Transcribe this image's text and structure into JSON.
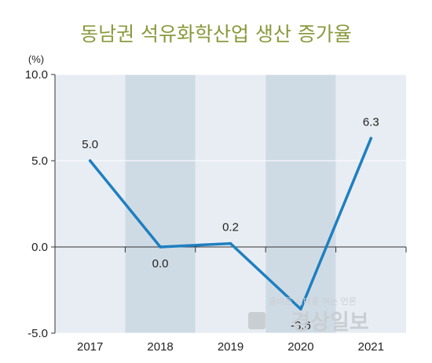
{
  "chart_data": {
    "type": "line",
    "title": "동남권 석유화학산업 생산 증가율",
    "unit_label": "(%)",
    "categories": [
      "2017",
      "2018",
      "2019",
      "2020",
      "2021"
    ],
    "values": [
      5.0,
      0.0,
      0.2,
      -3.6,
      6.3
    ],
    "value_labels": [
      "5.0",
      "0.0",
      "0.2",
      "-3.6",
      "6.3"
    ],
    "ylim": [
      -5.0,
      10.0
    ],
    "yticks": [
      10.0,
      5.0,
      0.0,
      -5.0
    ],
    "ytick_labels": [
      "10.0",
      "5.0",
      "0.0",
      "-5.0"
    ],
    "grid": true,
    "colors": {
      "line": "#1f7fc0",
      "band_light": "#e7edf3",
      "band_dark": "#cfdbe4",
      "title": "#8a9a3c"
    }
  },
  "watermark": {
    "tagline": "올바른 시대를 여는 언론",
    "brand": "경상일보"
  }
}
